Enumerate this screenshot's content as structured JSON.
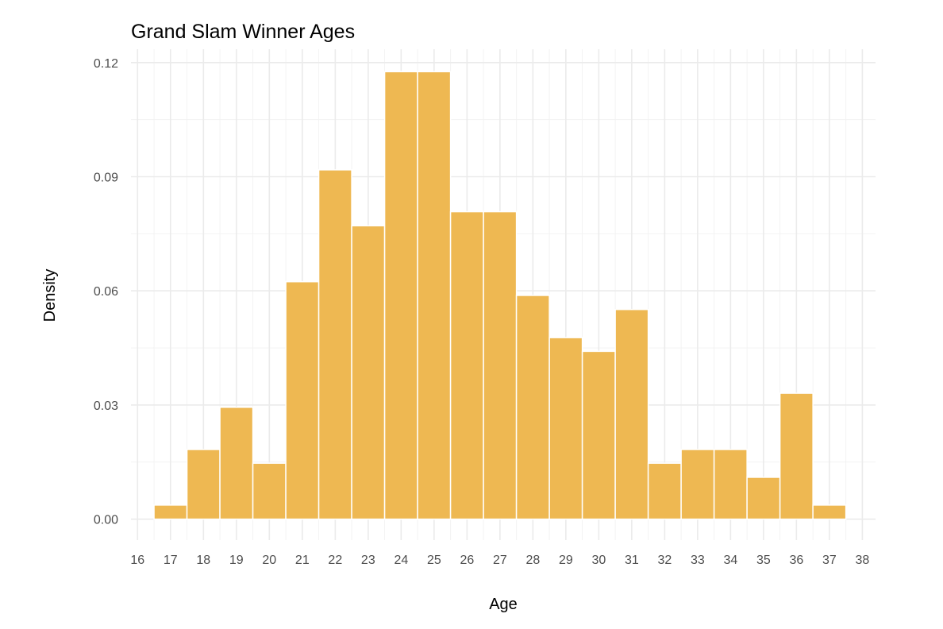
{
  "chart_data": {
    "type": "bar",
    "title": "Grand Slam Winner Ages",
    "xlabel": "Age",
    "ylabel": "Density",
    "xlim": [
      15.8,
      38.4
    ],
    "ylim": [
      -0.0055,
      0.1235
    ],
    "x_ticks": [
      "16",
      "17",
      "18",
      "19",
      "20",
      "21",
      "22",
      "23",
      "24",
      "25",
      "26",
      "27",
      "28",
      "29",
      "30",
      "31",
      "32",
      "33",
      "34",
      "35",
      "36",
      "37",
      "38"
    ],
    "y_ticks": [
      "0.00",
      "0.03",
      "0.06",
      "0.09",
      "0.12"
    ],
    "bins": [
      17,
      18,
      19,
      20,
      21,
      22,
      23,
      24,
      25,
      26,
      27,
      28,
      29,
      30,
      31,
      32,
      33,
      34,
      35,
      36,
      37
    ],
    "values": [
      0.0037,
      0.0183,
      0.0294,
      0.0147,
      0.0624,
      0.0918,
      0.0771,
      0.1176,
      0.1176,
      0.0808,
      0.0808,
      0.0588,
      0.0477,
      0.0441,
      0.0551,
      0.0147,
      0.0183,
      0.0183,
      0.011,
      0.0331,
      0.0037
    ],
    "bar_color": "#eeb852",
    "grid": true,
    "legend": "none"
  }
}
